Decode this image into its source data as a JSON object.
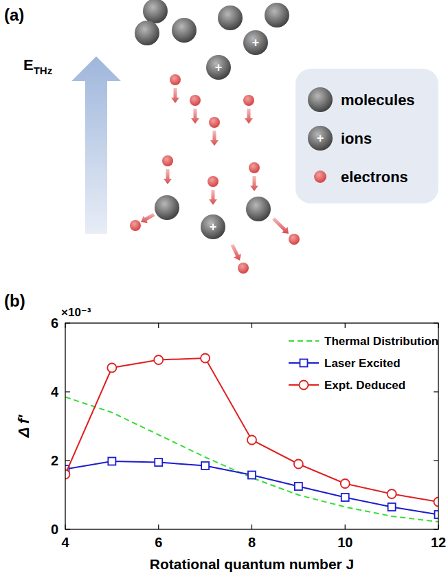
{
  "panel_a": {
    "label": "(a)",
    "field_label": "E",
    "field_subscript": "THz",
    "items": [
      {
        "kind": "molecule",
        "label": "molecules"
      },
      {
        "kind": "ion",
        "label": "ions",
        "sign": "+"
      },
      {
        "kind": "electron",
        "label": "electrons"
      }
    ]
  },
  "chart_data": {
    "type": "line",
    "panel_label": "(b)",
    "x_label": "Rotational quantum number J",
    "y_label": "Δ f′",
    "y_multiplier": "×10⁻³",
    "x": [
      4,
      5,
      6,
      7,
      8,
      9,
      10,
      11,
      12
    ],
    "xlim": [
      4,
      12
    ],
    "xticks": [
      4,
      6,
      8,
      10,
      12
    ],
    "ylim": [
      0,
      6
    ],
    "yticks": [
      0,
      2,
      4,
      6
    ],
    "legend": "upper right",
    "series": [
      {
        "name": "Thermal Distribution",
        "color": "#33dd33",
        "line_style": "dashed",
        "marker": "none",
        "values": [
          3.85,
          3.4,
          2.75,
          2.1,
          1.5,
          1.0,
          0.65,
          0.38,
          0.22
        ]
      },
      {
        "name": "Laser Excited",
        "color": "#1c1cd0",
        "line_style": "solid",
        "marker": "square",
        "values": [
          1.75,
          1.98,
          1.95,
          1.85,
          1.58,
          1.25,
          0.93,
          0.65,
          0.43
        ]
      },
      {
        "name": "Expt. Deduced",
        "color": "#e02020",
        "line_style": "solid",
        "marker": "circle",
        "values": [
          1.6,
          4.7,
          4.93,
          4.98,
          2.6,
          1.9,
          1.33,
          1.03,
          0.8
        ]
      }
    ]
  }
}
